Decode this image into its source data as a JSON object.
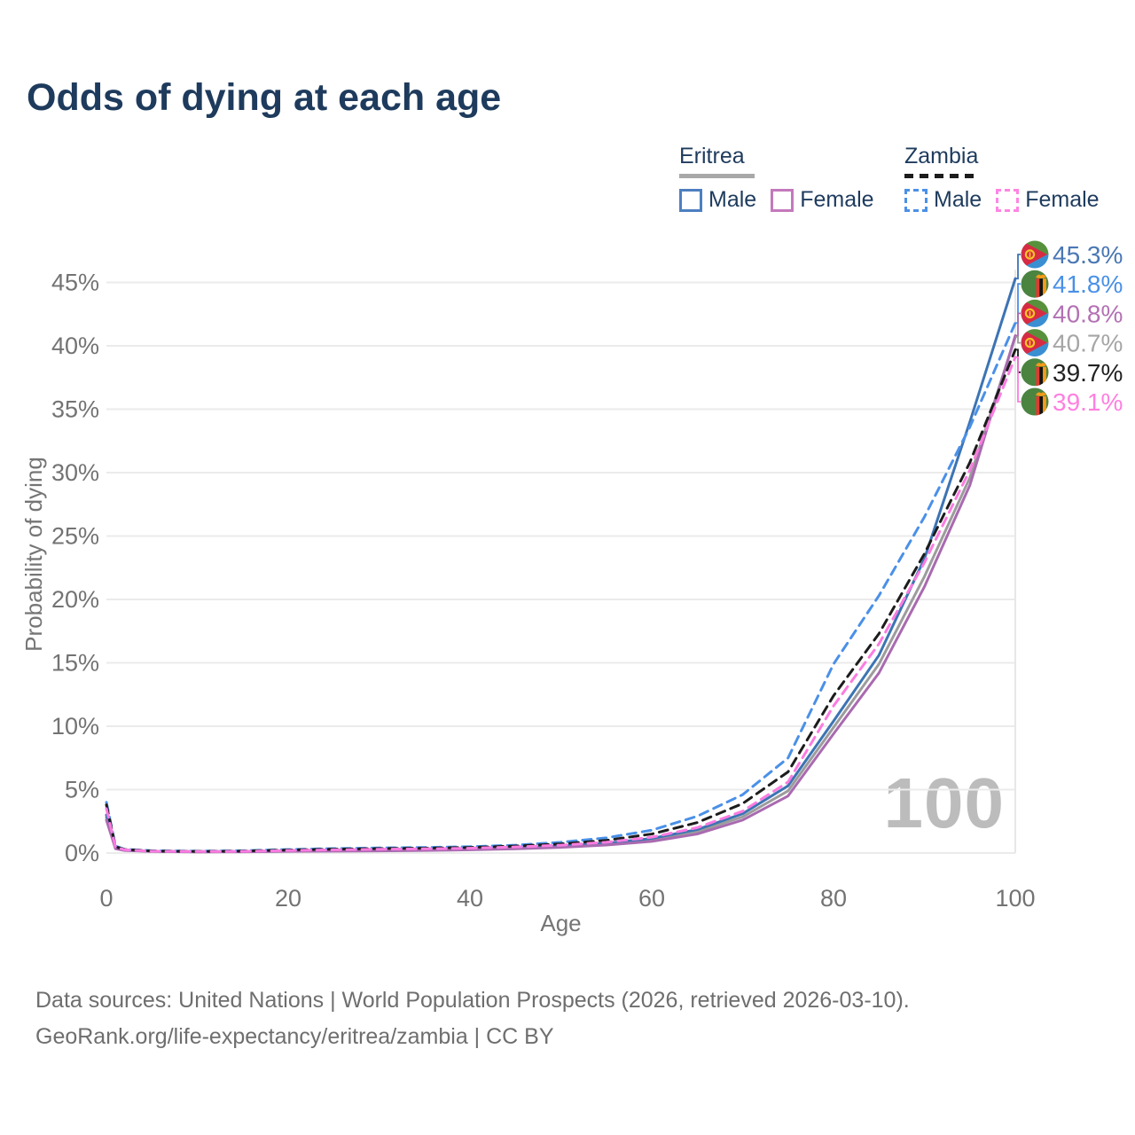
{
  "title": "Odds of dying at each age",
  "watermark": "100",
  "legend": {
    "groups": [
      {
        "label": "Eritrea",
        "style": "solid",
        "line_color": "#a8a8a8",
        "items": [
          {
            "label": "Male",
            "color": "#4d7fc0"
          },
          {
            "label": "Female",
            "color": "#c479bc"
          }
        ]
      },
      {
        "label": "Zambia",
        "style": "dashed",
        "line_color": "#1c1c1c",
        "items": [
          {
            "label": "Male",
            "color": "#4a90e8"
          },
          {
            "label": "Female",
            "color": "#ff85e3"
          }
        ]
      }
    ]
  },
  "icons": {
    "eritrea": "eritrea-flag-icon",
    "zambia": "zambia-flag-icon"
  },
  "chart_data": {
    "type": "line",
    "title": "Odds of dying at each age",
    "xlabel": "Age",
    "ylabel": "Probability of dying",
    "xlim": [
      0,
      100
    ],
    "ylim": [
      0,
      46
    ],
    "grid": "horizontal",
    "legend_position": "top-right",
    "x_ticks": [
      0,
      20,
      40,
      60,
      80,
      100
    ],
    "y_ticks": [
      {
        "value": 0,
        "label": "0%"
      },
      {
        "value": 5,
        "label": "5%"
      },
      {
        "value": 10,
        "label": "10%"
      },
      {
        "value": 15,
        "label": "15%"
      },
      {
        "value": 20,
        "label": "20%"
      },
      {
        "value": 25,
        "label": "25%"
      },
      {
        "value": 30,
        "label": "30%"
      },
      {
        "value": 35,
        "label": "35%"
      },
      {
        "value": 40,
        "label": "40%"
      },
      {
        "value": 45,
        "label": "45%"
      }
    ],
    "x": [
      0,
      1,
      2,
      5,
      10,
      15,
      20,
      25,
      30,
      35,
      40,
      45,
      50,
      55,
      60,
      65,
      70,
      75,
      80,
      85,
      90,
      95,
      100
    ],
    "series": [
      {
        "name": "Eritrea Both sexes",
        "flag": "eritrea",
        "style": "solid",
        "color": "#9c9c9c",
        "label_color": "#a6a6a6",
        "end_label": "40.7%",
        "values": [
          2.8,
          0.37,
          0.22,
          0.13,
          0.1,
          0.11,
          0.15,
          0.18,
          0.2,
          0.23,
          0.28,
          0.36,
          0.5,
          0.7,
          1.03,
          1.68,
          2.85,
          4.9,
          9.9,
          14.9,
          21.8,
          29.6,
          40.7
        ]
      },
      {
        "name": "Eritrea Male",
        "flag": "eritrea",
        "style": "solid",
        "color": "#3c74b4",
        "label_color": "#4a77b4",
        "end_label": "45.3%",
        "values": [
          3.0,
          0.4,
          0.24,
          0.14,
          0.11,
          0.12,
          0.17,
          0.2,
          0.23,
          0.26,
          0.31,
          0.4,
          0.55,
          0.78,
          1.15,
          1.85,
          3.1,
          5.3,
          10.4,
          15.6,
          23.2,
          34.0,
          45.3
        ]
      },
      {
        "name": "Eritrea Female",
        "flag": "eritrea",
        "style": "solid",
        "color": "#a96ab0",
        "label_color": "#b371b3",
        "end_label": "40.8%",
        "values": [
          2.6,
          0.34,
          0.2,
          0.12,
          0.09,
          0.1,
          0.13,
          0.15,
          0.17,
          0.2,
          0.25,
          0.33,
          0.45,
          0.63,
          0.92,
          1.5,
          2.6,
          4.5,
          9.4,
          14.2,
          21.0,
          29.0,
          40.8
        ]
      },
      {
        "name": "Zambia Male",
        "flag": "zambia",
        "style": "dashed",
        "color": "#4a90e8",
        "label_color": "#4a90e8",
        "end_label": "41.8%",
        "values": [
          4.0,
          0.55,
          0.3,
          0.18,
          0.15,
          0.18,
          0.28,
          0.35,
          0.4,
          0.44,
          0.5,
          0.62,
          0.85,
          1.2,
          1.8,
          2.9,
          4.6,
          7.5,
          14.9,
          20.3,
          26.5,
          33.6,
          41.8
        ]
      },
      {
        "name": "Zambia Both sexes",
        "flag": "zambia",
        "style": "dashed",
        "color": "#1c1c1c",
        "label_color": "#222222",
        "end_label": "39.7%",
        "values": [
          3.8,
          0.5,
          0.28,
          0.16,
          0.13,
          0.15,
          0.24,
          0.3,
          0.35,
          0.38,
          0.44,
          0.55,
          0.72,
          1.0,
          1.5,
          2.4,
          3.9,
          6.4,
          12.4,
          17.3,
          23.6,
          30.8,
          39.7
        ]
      },
      {
        "name": "Zambia Female",
        "flag": "zambia",
        "style": "dashed",
        "color": "#fb7ce0",
        "label_color": "#ff80e0",
        "end_label": "39.1%",
        "values": [
          3.5,
          0.46,
          0.26,
          0.14,
          0.12,
          0.13,
          0.2,
          0.25,
          0.3,
          0.33,
          0.38,
          0.48,
          0.62,
          0.85,
          1.25,
          2.0,
          3.3,
          5.6,
          11.6,
          16.5,
          22.9,
          30.2,
          39.1
        ]
      }
    ]
  },
  "source": {
    "line1": "Data sources: United Nations | World Population Prospects (2026, retrieved 2026-03-10).",
    "line2": "GeoRank.org/life-expectancy/eritrea/zambia | CC BY"
  }
}
